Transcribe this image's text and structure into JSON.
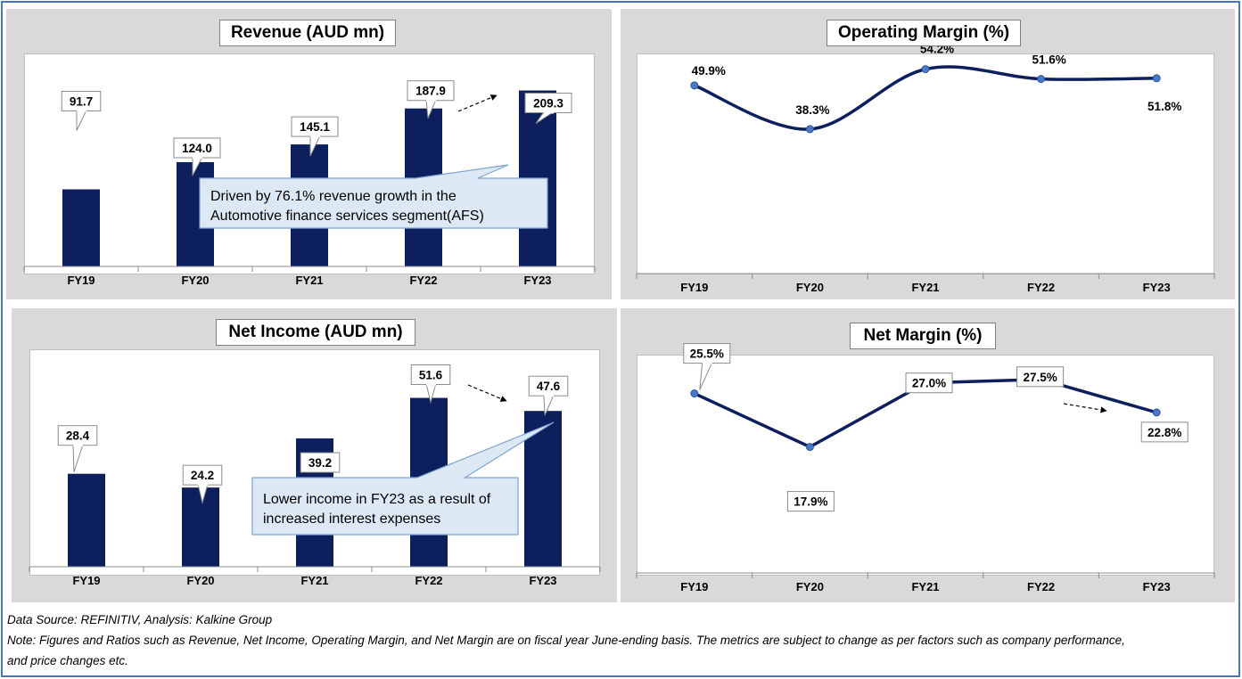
{
  "footer": {
    "source": "Data Source: REFINITIV, Analysis: Kalkine Group",
    "note_line1": "Note: Figures and Ratios such as Revenue, Net Income, Operating Margin, and Net Margin are on fiscal year June-ending basis. The metrics are subject to change as per factors such as company performance,",
    "note_line2": "and price changes etc."
  },
  "colors": {
    "bar": "#0d1f5c",
    "line": "#0d1f5c",
    "marker": "#4a78c8",
    "callout_fill": "#dde8f5",
    "callout_border": "#7da2cf",
    "panel": "#d9d9d9"
  },
  "chart_data": [
    {
      "type": "bar",
      "title": "Revenue (AUD mn)",
      "categories": [
        "FY19",
        "FY20",
        "FY21",
        "FY22",
        "FY23"
      ],
      "values": [
        91.7,
        124.0,
        145.1,
        187.9,
        209.3
      ],
      "labels": [
        "91.7",
        "124.0",
        "145.1",
        "187.9",
        "209.3"
      ],
      "ylim": [
        0,
        230
      ],
      "annotation": {
        "text_line1": "Driven by 76.1% revenue growth in the",
        "text_line2": "Automotive finance services segment(AFS)"
      }
    },
    {
      "type": "line",
      "title": "Operating Margin (%)",
      "categories": [
        "FY19",
        "FY20",
        "FY21",
        "FY22",
        "FY23"
      ],
      "values": [
        49.9,
        38.3,
        54.2,
        51.6,
        51.8
      ],
      "labels": [
        "49.9%",
        "38.3%",
        "54.2%",
        "51.6%",
        "51.8%"
      ],
      "ylim": [
        0,
        56
      ]
    },
    {
      "type": "bar",
      "title": "Net Income (AUD mn)",
      "categories": [
        "FY19",
        "FY20",
        "FY21",
        "FY22",
        "FY23"
      ],
      "values": [
        28.4,
        24.2,
        39.2,
        51.6,
        47.6
      ],
      "labels": [
        "28.4",
        "24.2",
        "39.2",
        "51.6",
        "47.6"
      ],
      "ylim": [
        0,
        58
      ],
      "annotation": {
        "text_line1": "Lower income in FY23 as a result of",
        "text_line2": "increased interest expenses"
      }
    },
    {
      "type": "line",
      "title": "Net Margin (%)",
      "categories": [
        "FY19",
        "FY20",
        "FY21",
        "FY22",
        "FY23"
      ],
      "values": [
        25.5,
        17.9,
        27.0,
        27.5,
        22.8
      ],
      "labels": [
        "25.5%",
        "17.9%",
        "27.0%",
        "27.5%",
        "22.8%"
      ],
      "ylim": [
        0,
        30
      ]
    }
  ]
}
